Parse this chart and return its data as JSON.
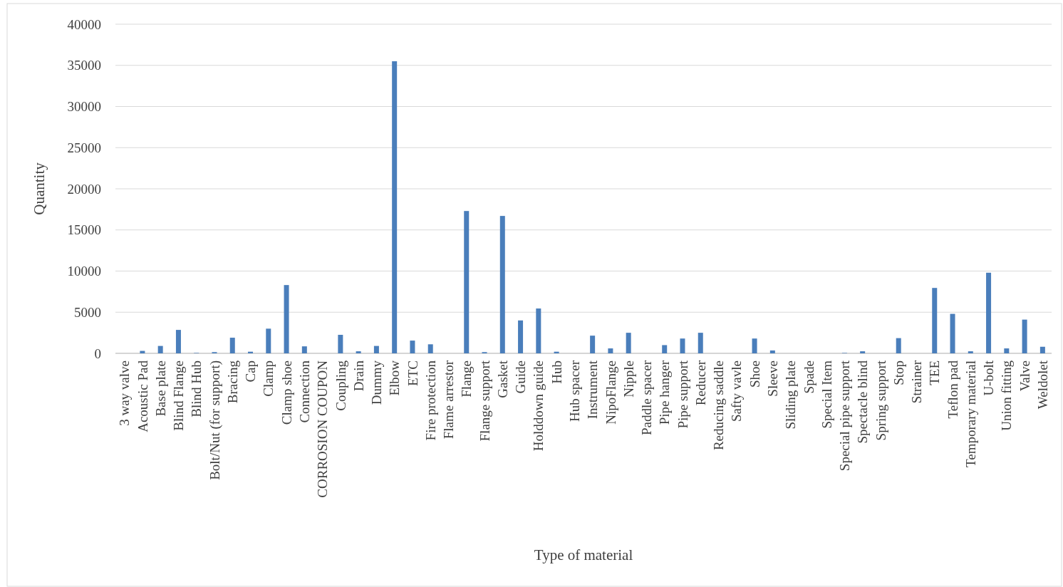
{
  "chart_data": {
    "type": "bar",
    "xlabel": "Type of material",
    "ylabel": "Quantity",
    "categories": [
      "3 way valve",
      "Acoustic Pad",
      "Base plate",
      "Blind Flange",
      "Blind Hub",
      "Bolt/Nut (for support)",
      "Bracing",
      "Cap",
      "Clamp",
      "Clamp shoe",
      "Connection",
      "CORROSION COUPON",
      "Coupling",
      "Drain",
      "Dummy",
      "Elbow",
      "ETC",
      "Fire protection",
      "Flame arrestor",
      "Flange",
      "Flange support",
      "Gasket",
      "Guide",
      "Holddown guide",
      "Hub",
      "Hub spacer",
      "Instrument",
      "NipoFlange",
      "Nipple",
      "Paddle spacer",
      "Pipe hanger",
      "Pipe support",
      "Reducer",
      "Reducing saddle",
      "Safty vavle",
      "Shoe",
      "Sleeve",
      "Sliding plate",
      "Spade",
      "Special Item",
      "Special pipe support",
      "Spectacle blind",
      "Spring support",
      "Stop",
      "Strainer",
      "TEE",
      "Teflon pad",
      "Temporary material",
      "U-bolt",
      "Union fitting",
      "Valve",
      "Weldolet"
    ],
    "values": [
      0,
      300,
      900,
      2850,
      50,
      150,
      1900,
      200,
      3000,
      8300,
      850,
      0,
      2250,
      250,
      900,
      35500,
      1550,
      1100,
      0,
      17300,
      150,
      16700,
      4000,
      5450,
      200,
      0,
      2150,
      600,
      2500,
      0,
      1000,
      1800,
      2500,
      0,
      0,
      1800,
      350,
      0,
      0,
      0,
      50,
      250,
      0,
      1850,
      0,
      7950,
      4800,
      250,
      9800,
      600,
      4100,
      800
    ],
    "color": "#4a7ebb",
    "ylim": [
      0,
      40000
    ],
    "yticks": [
      0,
      5000,
      10000,
      15000,
      20000,
      25000,
      30000,
      35000,
      40000
    ],
    "grid": "y"
  }
}
